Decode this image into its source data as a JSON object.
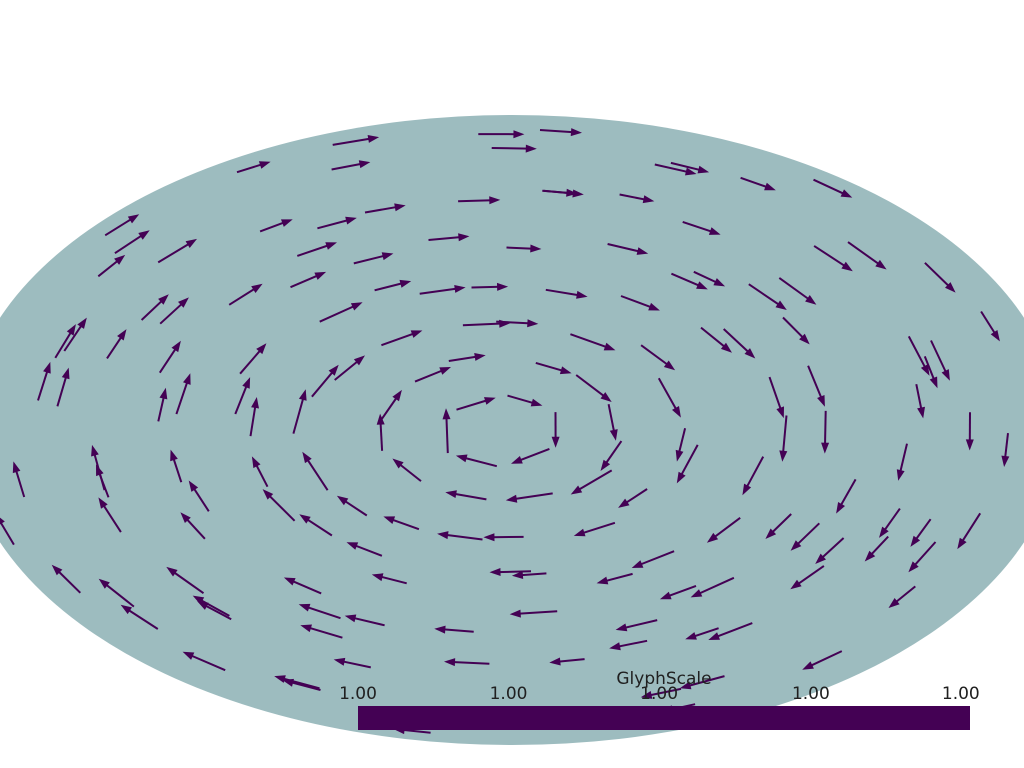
{
  "scene": {
    "background_color": "#ffffff",
    "disc_color": "#9dbcbf",
    "glyph_color": "#440154"
  },
  "scalar_bar": {
    "title": "GlyphScale",
    "tick_labels": [
      "1.00",
      "1.00",
      "1.00",
      "1.00",
      "1.00"
    ],
    "color": "#440154"
  }
}
